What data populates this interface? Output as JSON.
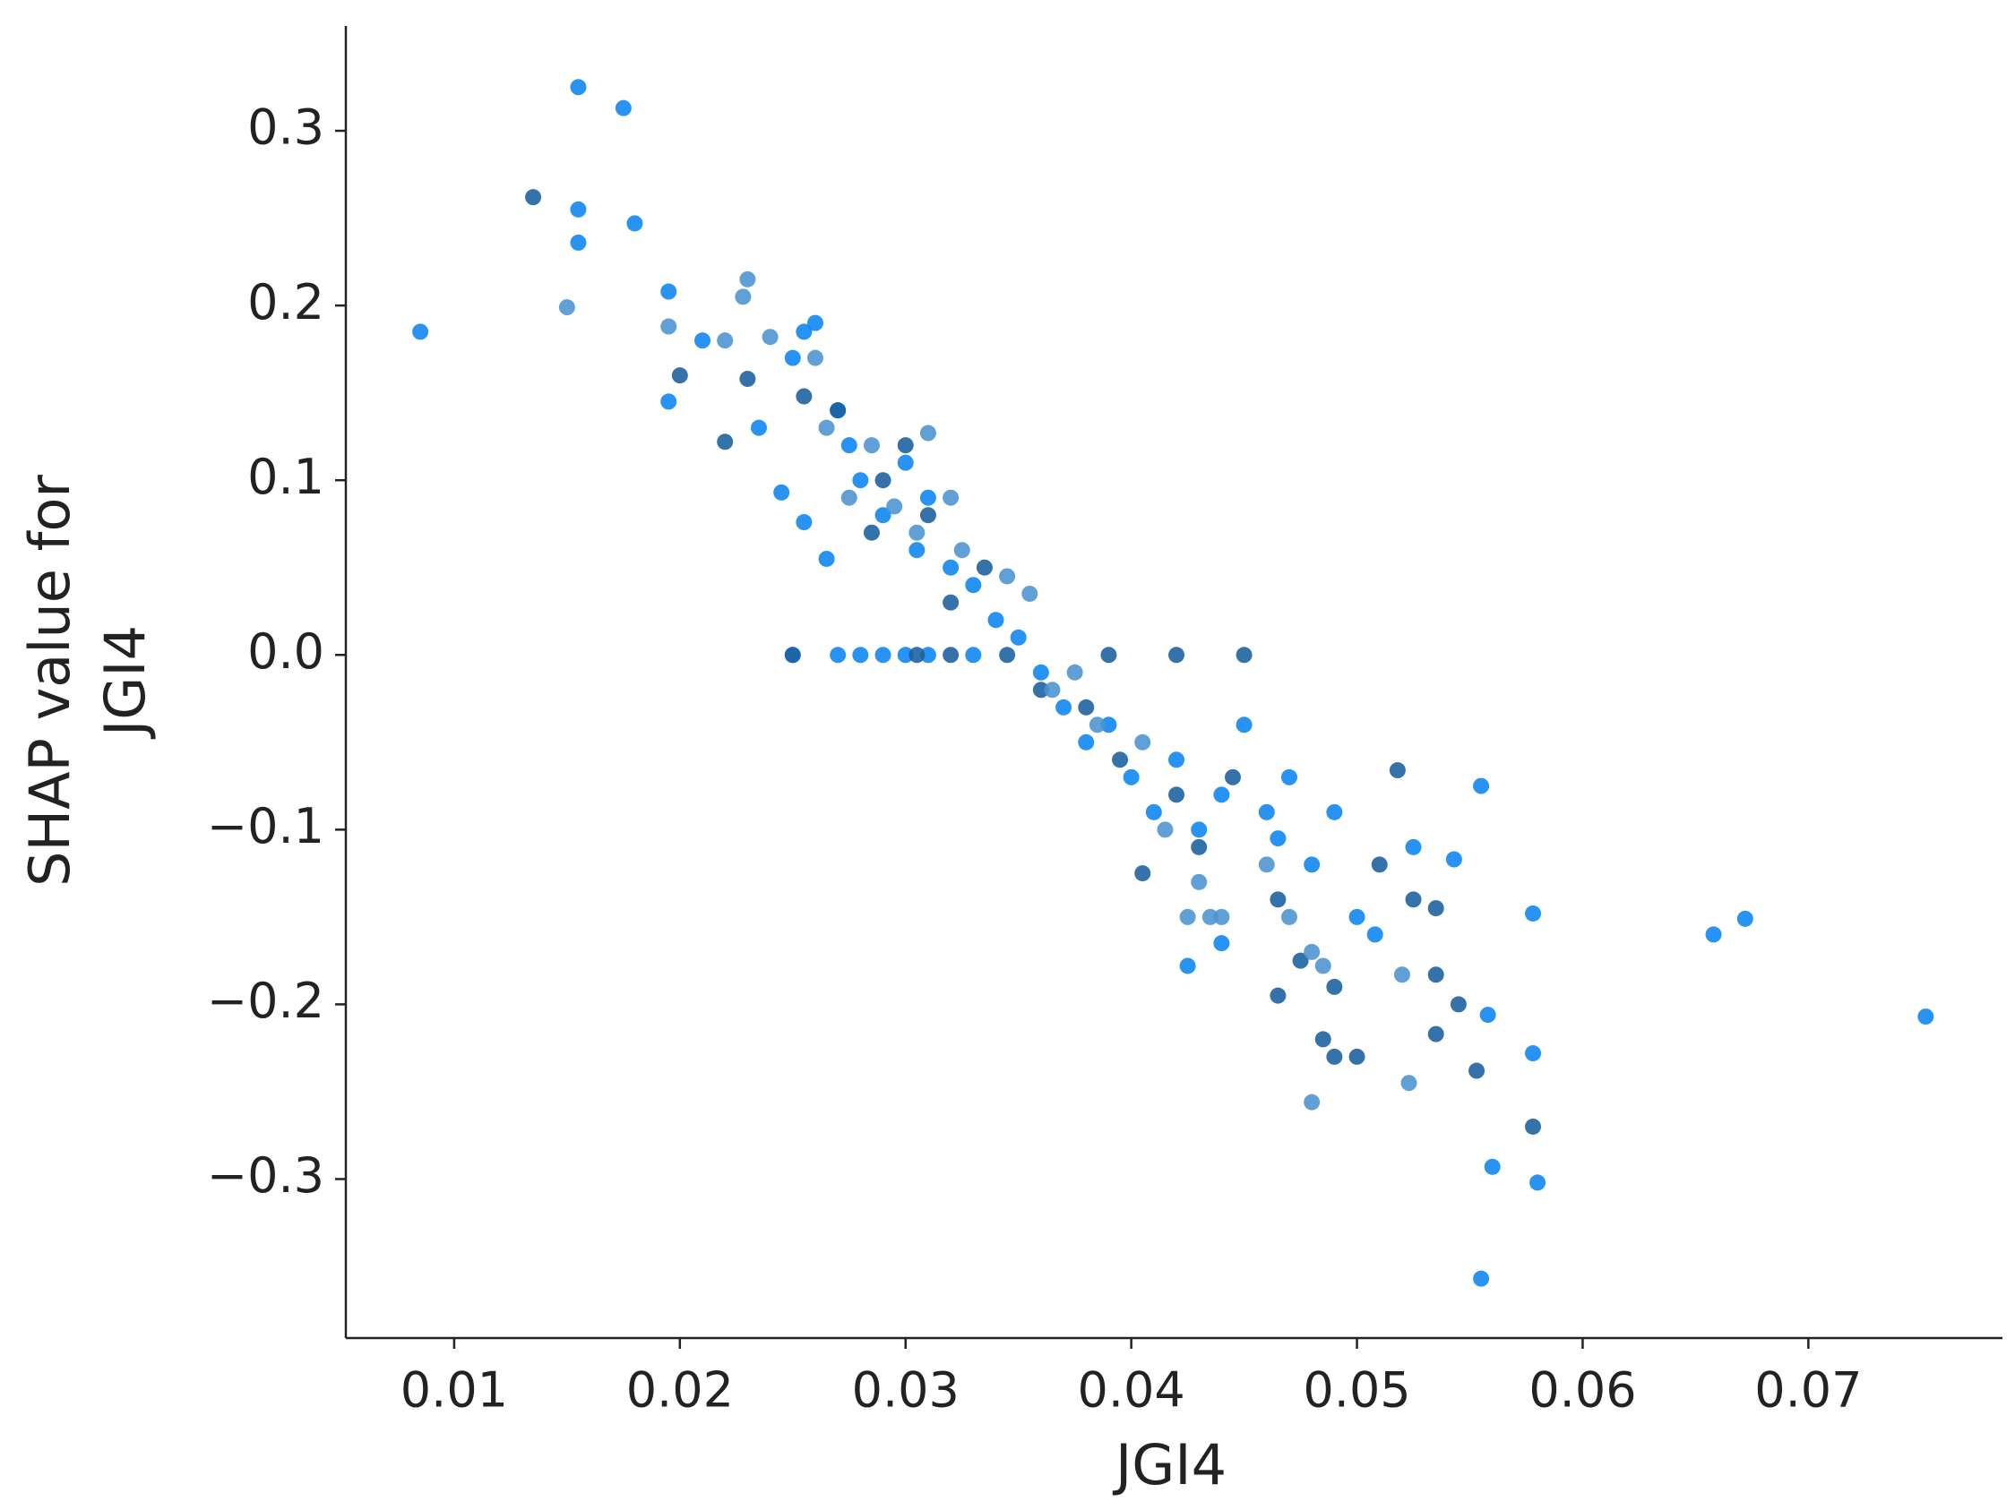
{
  "chart_data": {
    "type": "scatter",
    "xlabel": "JGI4",
    "ylabel": [
      "SHAP value for",
      "JGI4"
    ],
    "xlim": [
      0.0052,
      0.0786
    ],
    "ylim": [
      -0.391,
      0.36
    ],
    "xticks": [
      0.01,
      0.02,
      0.03,
      0.04,
      0.05,
      0.06,
      0.07
    ],
    "yticks": [
      {
        "value": -0.3,
        "label": "−0.3"
      },
      {
        "value": -0.2,
        "label": "−0.2"
      },
      {
        "value": -0.1,
        "label": "−0.1"
      },
      {
        "value": 0,
        "label": "0.0"
      },
      0.1,
      0.2,
      0.3
    ],
    "series": [
      {
        "color": "#0a84f0",
        "x": [
          0.0085,
          0.0155,
          0.0175,
          0.0155,
          0.0155,
          0.018,
          0.0195,
          0.0195,
          0.021,
          0.0235,
          0.025,
          0.0255,
          0.026,
          0.0245,
          0.0255,
          0.027,
          0.0275,
          0.028,
          0.0265,
          0.029,
          0.03,
          0.0305,
          0.031,
          0.032,
          0.033,
          0.034,
          0.035,
          0.025,
          0.027,
          0.028,
          0.029,
          0.03,
          0.031,
          0.033,
          0.036,
          0.037,
          0.038,
          0.039,
          0.04,
          0.041,
          0.042,
          0.043,
          0.044,
          0.045,
          0.046,
          0.047,
          0.048,
          0.049,
          0.05,
          0.0425,
          0.044,
          0.0465,
          0.0555,
          0.0543,
          0.0525,
          0.0555,
          0.056,
          0.058,
          0.0578,
          0.0558,
          0.0658,
          0.0672,
          0.0752,
          0.0578,
          0.0508
        ],
        "values": [
          0.185,
          0.325,
          0.313,
          0.255,
          0.236,
          0.247,
          0.208,
          0.145,
          0.18,
          0.13,
          0.17,
          0.185,
          0.19,
          0.093,
          0.076,
          0.14,
          0.12,
          0.1,
          0.055,
          0.08,
          0.11,
          0.06,
          0.09,
          0.05,
          0.04,
          0.02,
          0.01,
          0,
          0,
          0,
          0,
          0,
          0,
          0,
          -0.01,
          -0.03,
          -0.05,
          -0.04,
          -0.07,
          -0.09,
          -0.06,
          -0.1,
          -0.08,
          -0.04,
          -0.09,
          -0.07,
          -0.12,
          -0.09,
          -0.15,
          -0.178,
          -0.165,
          -0.105,
          -0.075,
          -0.117,
          -0.11,
          -0.357,
          -0.293,
          -0.302,
          -0.228,
          -0.206,
          -0.16,
          -0.151,
          -0.207,
          -0.148,
          -0.16
        ]
      },
      {
        "color": "#1a5f9e",
        "x": [
          0.0135,
          0.02,
          0.022,
          0.023,
          0.0255,
          0.027,
          0.0285,
          0.029,
          0.03,
          0.031,
          0.032,
          0.0335,
          0.0345,
          0.025,
          0.0305,
          0.032,
          0.036,
          0.038,
          0.0395,
          0.0405,
          0.042,
          0.043,
          0.0445,
          0.039,
          0.042,
          0.045,
          0.0465,
          0.0475,
          0.0465,
          0.049,
          0.049,
          0.05,
          0.0485,
          0.051,
          0.0518,
          0.0553,
          0.0578,
          0.0535,
          0.0535,
          0.0545,
          0.0525,
          0.0535
        ],
        "values": [
          0.262,
          0.16,
          0.122,
          0.158,
          0.148,
          0.14,
          0.07,
          0.1,
          0.12,
          0.08,
          0.03,
          0.05,
          0,
          0,
          0,
          0,
          -0.02,
          -0.03,
          -0.06,
          -0.125,
          -0.08,
          -0.11,
          -0.07,
          0,
          0,
          0,
          -0.14,
          -0.175,
          -0.195,
          -0.19,
          -0.23,
          -0.23,
          -0.22,
          -0.12,
          -0.066,
          -0.238,
          -0.27,
          -0.183,
          -0.217,
          -0.2,
          -0.14,
          -0.145
        ]
      },
      {
        "color": "#4b93d1",
        "x": [
          0.015,
          0.0195,
          0.022,
          0.023,
          0.0228,
          0.024,
          0.026,
          0.0265,
          0.0275,
          0.0285,
          0.0295,
          0.031,
          0.0305,
          0.032,
          0.0325,
          0.0345,
          0.0355,
          0.0365,
          0.0375,
          0.0385,
          0.0405,
          0.0415,
          0.043,
          0.044,
          0.046,
          0.047,
          0.048,
          0.0485,
          0.048,
          0.0523,
          0.052,
          0.0435,
          0.0425
        ],
        "values": [
          0.199,
          0.188,
          0.18,
          0.215,
          0.205,
          0.182,
          0.17,
          0.13,
          0.09,
          0.12,
          0.085,
          0.127,
          0.07,
          0.09,
          0.06,
          0.045,
          0.035,
          -0.02,
          -0.01,
          -0.04,
          -0.05,
          -0.1,
          -0.13,
          -0.15,
          -0.12,
          -0.15,
          -0.17,
          -0.178,
          -0.256,
          -0.245,
          -0.183,
          -0.15,
          -0.15
        ]
      }
    ]
  }
}
